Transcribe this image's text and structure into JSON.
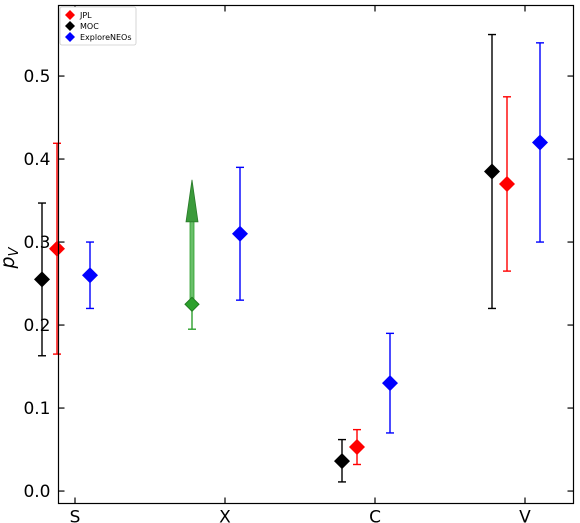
{
  "chart_data": {
    "type": "scatter",
    "title": "",
    "xlabel": "",
    "ylabel": {
      "main": "p",
      "sub": "V"
    },
    "categories": [
      "S",
      "X",
      "C",
      "V"
    ],
    "ylim": [
      -0.015,
      0.585
    ],
    "yticks": [
      "0.0",
      "0.1",
      "0.2",
      "0.3",
      "0.4",
      "0.5"
    ],
    "legend": {
      "placement": "top-left",
      "entries": [
        {
          "name": "JPL",
          "color": "#ff0000"
        },
        {
          "name": "MOC",
          "color": "#000000"
        },
        {
          "name": "ExploreNEOs",
          "color": "#0000ff"
        }
      ]
    },
    "grid": false,
    "series": [
      {
        "name": "MOC",
        "color": "#000000",
        "points": [
          {
            "category": "S",
            "offset": -0.22,
            "y": 0.255,
            "low": 0.163,
            "high": 0.347
          },
          {
            "category": "C",
            "offset": -0.22,
            "y": 0.036,
            "low": 0.011,
            "high": 0.062
          },
          {
            "category": "V",
            "offset": -0.22,
            "y": 0.385,
            "low": 0.22,
            "high": 0.55
          }
        ]
      },
      {
        "name": "JPL",
        "color": "#ff0000",
        "points": [
          {
            "category": "S",
            "offset": -0.12,
            "y": 0.292,
            "low": 0.165,
            "high": 0.419
          },
          {
            "category": "C",
            "offset": -0.12,
            "y": 0.053,
            "low": 0.032,
            "high": 0.074
          },
          {
            "category": "V",
            "offset": -0.12,
            "y": 0.37,
            "low": 0.265,
            "high": 0.475
          }
        ]
      },
      {
        "name": "ExploreNEOs",
        "color": "#0000ff",
        "points": [
          {
            "category": "S",
            "offset": 0.1,
            "y": 0.26,
            "low": 0.22,
            "high": 0.3
          },
          {
            "category": "X",
            "offset": 0.1,
            "y": 0.31,
            "low": 0.23,
            "high": 0.39
          },
          {
            "category": "C",
            "offset": 0.1,
            "y": 0.13,
            "low": 0.07,
            "high": 0.19
          },
          {
            "category": "V",
            "offset": 0.1,
            "y": 0.42,
            "low": 0.3,
            "high": 0.54
          }
        ]
      },
      {
        "name": "",
        "color": "#2ca02c",
        "points": [
          {
            "category": "X",
            "offset": -0.22,
            "y": 0.225,
            "low": 0.195,
            "high": 0.225,
            "lower_limit": true,
            "arrow_to": 0.375
          }
        ]
      }
    ]
  }
}
